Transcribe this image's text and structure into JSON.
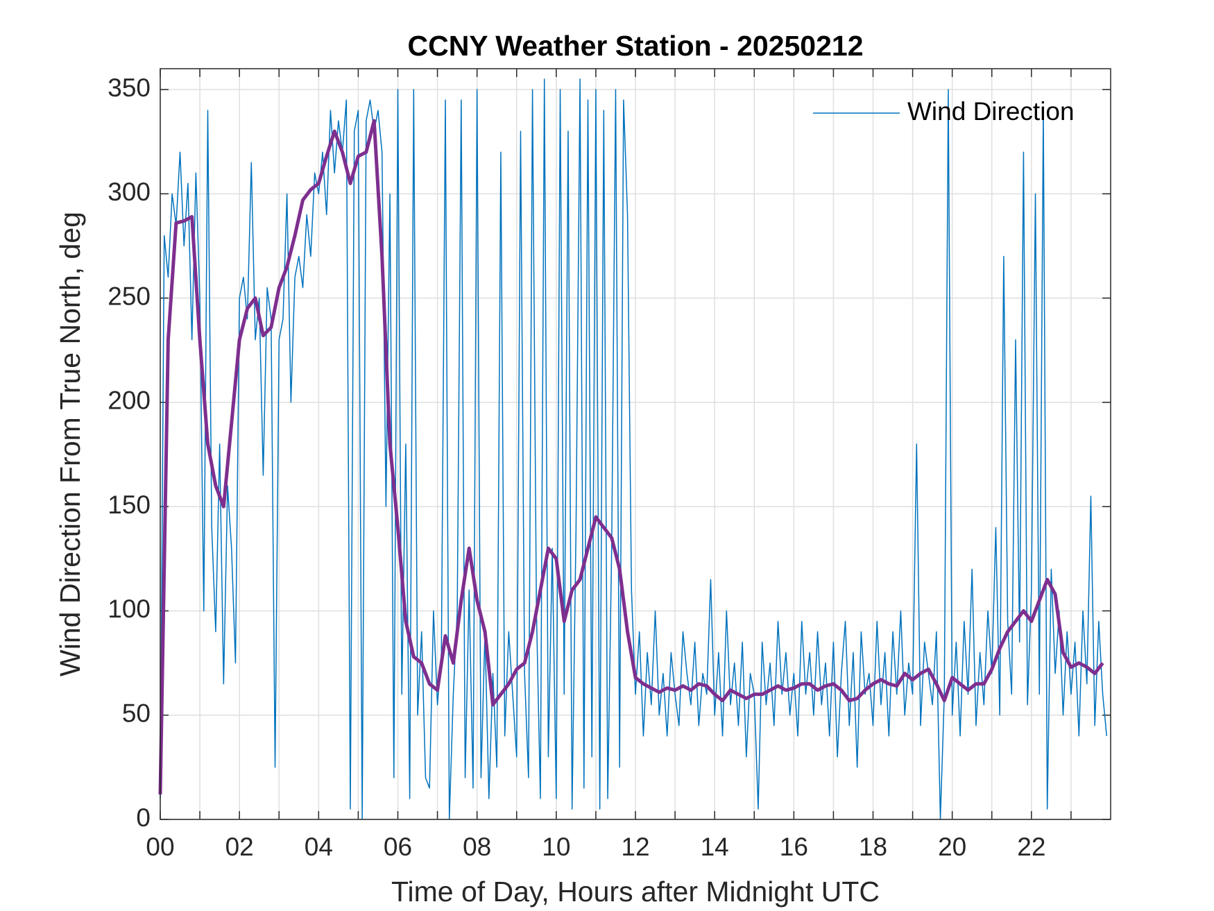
{
  "chart_data": {
    "type": "line",
    "title": "CCNY Weather Station - 20250212",
    "xlabel": "Time of Day, Hours after Midnight UTC",
    "ylabel": "Wind Direction From True North, deg",
    "xlim": [
      0,
      24
    ],
    "ylim": [
      0,
      360
    ],
    "xticks": [
      {
        "value": 0,
        "label": "00"
      },
      {
        "value": 2,
        "label": "02"
      },
      {
        "value": 4,
        "label": "04"
      },
      {
        "value": 6,
        "label": "06"
      },
      {
        "value": 8,
        "label": "08"
      },
      {
        "value": 10,
        "label": "10"
      },
      {
        "value": 12,
        "label": "12"
      },
      {
        "value": 14,
        "label": "14"
      },
      {
        "value": 16,
        "label": "16"
      },
      {
        "value": 18,
        "label": "18"
      },
      {
        "value": 20,
        "label": "20"
      },
      {
        "value": 22,
        "label": "22"
      }
    ],
    "xminorticks": [
      1,
      3,
      5,
      7,
      9,
      11,
      13,
      15,
      17,
      19,
      21,
      23
    ],
    "yticks": [
      0,
      50,
      100,
      150,
      200,
      250,
      300,
      350
    ],
    "grid": true,
    "legend": "upper right",
    "series": [
      {
        "name": "Wind Direction",
        "color": "#0072bd",
        "width": 1.5,
        "x": [
          0,
          0.1,
          0.2,
          0.3,
          0.4,
          0.5,
          0.6,
          0.7,
          0.8,
          0.9,
          1,
          1.1,
          1.2,
          1.3,
          1.4,
          1.5,
          1.6,
          1.7,
          1.8,
          1.9,
          2,
          2.1,
          2.2,
          2.3,
          2.4,
          2.5,
          2.6,
          2.7,
          2.8,
          2.9,
          3,
          3.1,
          3.2,
          3.3,
          3.4,
          3.5,
          3.6,
          3.7,
          3.8,
          3.9,
          4,
          4.1,
          4.2,
          4.3,
          4.4,
          4.5,
          4.6,
          4.7,
          4.8,
          4.9,
          5,
          5.1,
          5.2,
          5.3,
          5.4,
          5.5,
          5.6,
          5.7,
          5.8,
          5.9,
          6,
          6.1,
          6.2,
          6.3,
          6.4,
          6.5,
          6.6,
          6.7,
          6.8,
          6.9,
          7,
          7.1,
          7.2,
          7.3,
          7.4,
          7.5,
          7.6,
          7.7,
          7.8,
          7.9,
          8,
          8.1,
          8.2,
          8.3,
          8.4,
          8.5,
          8.6,
          8.7,
          8.8,
          8.9,
          9,
          9.1,
          9.2,
          9.3,
          9.4,
          9.5,
          9.6,
          9.7,
          9.8,
          9.9,
          10,
          10.1,
          10.2,
          10.3,
          10.4,
          10.5,
          10.6,
          10.7,
          10.8,
          10.9,
          11,
          11.1,
          11.2,
          11.3,
          11.4,
          11.5,
          11.6,
          11.7,
          11.8,
          11.9,
          12,
          12.1,
          12.2,
          12.3,
          12.4,
          12.5,
          12.6,
          12.7,
          12.8,
          12.9,
          13,
          13.1,
          13.2,
          13.3,
          13.4,
          13.5,
          13.6,
          13.7,
          13.8,
          13.9,
          14,
          14.1,
          14.2,
          14.3,
          14.4,
          14.5,
          14.6,
          14.7,
          14.8,
          14.9,
          15,
          15.1,
          15.2,
          15.3,
          15.4,
          15.5,
          15.6,
          15.7,
          15.8,
          15.9,
          16,
          16.1,
          16.2,
          16.3,
          16.4,
          16.5,
          16.6,
          16.7,
          16.8,
          16.9,
          17,
          17.1,
          17.2,
          17.3,
          17.4,
          17.5,
          17.6,
          17.7,
          17.8,
          17.9,
          18,
          18.1,
          18.2,
          18.3,
          18.4,
          18.5,
          18.6,
          18.7,
          18.8,
          18.9,
          19,
          19.1,
          19.2,
          19.3,
          19.4,
          19.5,
          19.6,
          19.7,
          19.8,
          19.9,
          20,
          20.1,
          20.2,
          20.3,
          20.4,
          20.5,
          20.6,
          20.7,
          20.8,
          20.9,
          21,
          21.1,
          21.2,
          21.3,
          21.4,
          21.5,
          21.6,
          21.7,
          21.8,
          21.9,
          22,
          22.1,
          22.2,
          22.3,
          22.4,
          22.5,
          22.6,
          22.7,
          22.8,
          22.9,
          23,
          23.1,
          23.2,
          23.3,
          23.4,
          23.5,
          23.6,
          23.7,
          23.8,
          23.9
        ],
        "values": [
          10,
          280,
          260,
          300,
          285,
          320,
          275,
          305,
          230,
          310,
          250,
          100,
          340,
          140,
          90,
          180,
          65,
          160,
          130,
          75,
          250,
          260,
          240,
          315,
          230,
          250,
          165,
          255,
          240,
          25,
          230,
          240,
          300,
          200,
          260,
          270,
          255,
          290,
          270,
          310,
          300,
          320,
          290,
          340,
          310,
          335,
          320,
          345,
          5,
          330,
          340,
          0,
          335,
          345,
          330,
          340,
          320,
          150,
          300,
          20,
          350,
          60,
          180,
          10,
          350,
          50,
          90,
          20,
          15,
          100,
          55,
          80,
          345,
          0,
          60,
          100,
          345,
          20,
          110,
          15,
          350,
          20,
          90,
          10,
          70,
          25,
          320,
          40,
          90,
          60,
          30,
          330,
          70,
          20,
          350,
          100,
          10,
          355,
          30,
          130,
          10,
          350,
          60,
          330,
          5,
          140,
          355,
          15,
          345,
          30,
          350,
          5,
          340,
          10,
          130,
          350,
          25,
          345,
          290,
          110,
          60,
          90,
          40,
          80,
          55,
          100,
          50,
          70,
          40,
          80,
          60,
          45,
          90,
          70,
          55,
          85,
          45,
          70,
          60,
          115,
          50,
          80,
          40,
          100,
          55,
          75,
          45,
          85,
          30,
          70,
          60,
          5,
          85,
          55,
          75,
          45,
          95,
          60,
          80,
          50,
          70,
          40,
          95,
          60,
          80,
          50,
          90,
          55,
          75,
          40,
          85,
          30,
          70,
          95,
          45,
          80,
          25,
          90,
          60,
          70,
          45,
          95,
          55,
          80,
          40,
          90,
          60,
          100,
          50,
          75,
          60,
          180,
          45,
          85,
          70,
          55,
          90,
          0,
          60,
          350,
          50,
          85,
          40,
          95,
          60,
          120,
          45,
          80,
          55,
          100,
          70,
          140,
          50,
          270,
          95,
          60,
          230,
          85,
          320,
          55,
          110,
          300,
          60,
          340,
          5,
          120,
          70,
          100,
          50,
          90,
          60,
          85,
          40,
          100,
          65,
          155,
          45,
          95,
          60,
          40
        ]
      },
      {
        "color": "#7e2f8e",
        "width": 5,
        "x": [
          0,
          0.2,
          0.4,
          0.6,
          0.8,
          1,
          1.2,
          1.4,
          1.6,
          1.8,
          2,
          2.2,
          2.4,
          2.6,
          2.8,
          3,
          3.2,
          3.4,
          3.6,
          3.8,
          4,
          4.2,
          4.4,
          4.6,
          4.8,
          5,
          5.2,
          5.4,
          5.6,
          5.8,
          6,
          6.2,
          6.4,
          6.6,
          6.8,
          7,
          7.2,
          7.4,
          7.6,
          7.8,
          8,
          8.2,
          8.4,
          8.6,
          8.8,
          9,
          9.2,
          9.4,
          9.6,
          9.8,
          10,
          10.2,
          10.4,
          10.6,
          10.8,
          11,
          11.2,
          11.4,
          11.6,
          11.8,
          12,
          12.2,
          12.4,
          12.6,
          12.8,
          13,
          13.2,
          13.4,
          13.6,
          13.8,
          14,
          14.2,
          14.4,
          14.6,
          14.8,
          15,
          15.2,
          15.4,
          15.6,
          15.8,
          16,
          16.2,
          16.4,
          16.6,
          16.8,
          17,
          17.2,
          17.4,
          17.6,
          17.8,
          18,
          18.2,
          18.4,
          18.6,
          18.8,
          19,
          19.2,
          19.4,
          19.6,
          19.8,
          20,
          20.2,
          20.4,
          20.6,
          20.8,
          21,
          21.2,
          21.4,
          21.6,
          21.8,
          22,
          22.2,
          22.4,
          22.6,
          22.8,
          23,
          23.2,
          23.4,
          23.6,
          23.8
        ],
        "values": [
          12,
          230,
          286,
          287,
          289,
          230,
          180,
          160,
          150,
          190,
          230,
          245,
          250,
          232,
          236,
          255,
          265,
          280,
          297,
          302,
          305,
          318,
          330,
          320,
          305,
          318,
          320,
          335,
          270,
          180,
          140,
          95,
          78,
          75,
          65,
          62,
          88,
          75,
          105,
          130,
          105,
          90,
          55,
          60,
          65,
          72,
          75,
          90,
          110,
          130,
          125,
          95,
          110,
          115,
          130,
          145,
          140,
          135,
          120,
          90,
          68,
          65,
          63,
          61,
          63,
          62,
          64,
          62,
          65,
          64,
          60,
          57,
          62,
          60,
          58,
          60,
          60,
          62,
          64,
          62,
          63,
          65,
          65,
          62,
          64,
          65,
          62,
          57,
          58,
          62,
          65,
          67,
          65,
          64,
          70,
          67,
          70,
          72,
          65,
          57,
          68,
          65,
          62,
          65,
          65,
          72,
          82,
          90,
          95,
          100,
          95,
          105,
          115,
          108,
          80,
          73,
          75,
          73,
          70,
          75
        ]
      }
    ]
  }
}
